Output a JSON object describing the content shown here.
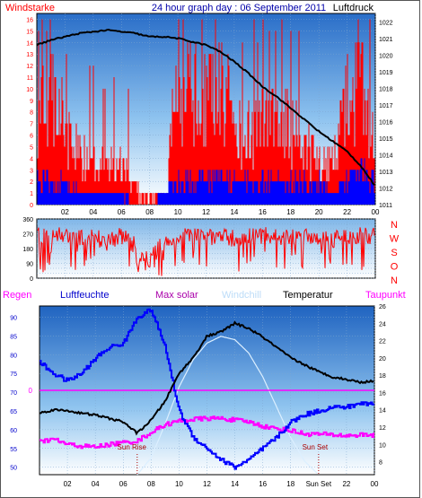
{
  "chart_data": [
    {
      "type": "line",
      "panel": "wind_pressure",
      "title": "24 hour graph day : 06 September 2011",
      "left_label": "Windstarke",
      "right_label": "Luftdruck",
      "x_ticks": [
        "02",
        "04",
        "06",
        "08",
        "10",
        "12",
        "14",
        "16",
        "18",
        "20",
        "22",
        "00"
      ],
      "y_left_ticks": [
        "0",
        "1",
        "2",
        "3",
        "4",
        "5",
        "6",
        "7",
        "8",
        "9",
        "10",
        "11",
        "12",
        "13",
        "14",
        "15",
        "16"
      ],
      "y_right_ticks": [
        "1011",
        "1012",
        "1013",
        "1014",
        "1015",
        "1016",
        "1017",
        "1018",
        "1019",
        "1020",
        "1021",
        "1022"
      ],
      "ylim_left": [
        0,
        16.5
      ],
      "ylim_right": [
        1011,
        1022.5
      ],
      "grid": true,
      "series": [
        {
          "name": "Luftdruck",
          "color": "#000000",
          "x": [
            0,
            1,
            2,
            3,
            4,
            5,
            6,
            7,
            8,
            9,
            10,
            11,
            12,
            13,
            14,
            15,
            16,
            17,
            18,
            19,
            20,
            21,
            22,
            23,
            24
          ],
          "y": [
            1020.6,
            1020.9,
            1021.1,
            1021.3,
            1021.4,
            1021.5,
            1021.4,
            1021.3,
            1021.1,
            1021.1,
            1021.0,
            1020.8,
            1020.6,
            1020.2,
            1019.6,
            1018.9,
            1018.1,
            1017.5,
            1016.8,
            1016.1,
            1015.4,
            1014.8,
            1014.2,
            1013.3,
            1012.1
          ]
        },
        {
          "name": "Windstarke (max)",
          "color": "#ff0000",
          "x": [
            0,
            1,
            2,
            3,
            4,
            5,
            6,
            7,
            8,
            9,
            10,
            11,
            12,
            13,
            14,
            15,
            16,
            17,
            18,
            19,
            20,
            21,
            22,
            23,
            24
          ],
          "y": [
            10,
            15,
            9,
            6,
            5,
            4,
            5,
            2,
            1,
            4,
            13,
            13,
            12,
            14,
            10,
            8,
            10,
            9,
            9,
            7,
            5,
            5,
            12,
            14,
            7
          ]
        },
        {
          "name": "Windstarke (avg)",
          "color": "#0000ff",
          "x": [
            0,
            1,
            2,
            3,
            4,
            5,
            6,
            7,
            8,
            9,
            10,
            11,
            12,
            13,
            14,
            15,
            16,
            17,
            18,
            19,
            20,
            21,
            22,
            23,
            24
          ],
          "y": [
            2,
            2,
            2,
            1,
            1,
            1,
            1,
            0,
            0,
            1,
            2,
            2,
            2,
            2,
            2,
            2,
            2,
            2,
            2,
            2,
            2,
            1,
            2,
            3,
            2
          ]
        }
      ]
    },
    {
      "type": "line",
      "panel": "wind_direction",
      "y_ticks": [
        "0",
        "30",
        "60",
        "90",
        "120",
        "150",
        "180",
        "210",
        "240",
        "270",
        "300",
        "330",
        "360"
      ],
      "ylim": [
        0,
        360
      ],
      "right_letters": [
        "N",
        "W",
        "S",
        "O",
        "N"
      ],
      "series": [
        {
          "name": "Windrichtung",
          "color": "#ff0000",
          "x": [
            0,
            1,
            2,
            3,
            4,
            5,
            6,
            7,
            8,
            9,
            10,
            11,
            12,
            13,
            14,
            15,
            16,
            17,
            18,
            19,
            20,
            21,
            22,
            23,
            24
          ],
          "y": [
            250,
            270,
            260,
            240,
            250,
            230,
            260,
            200,
            90,
            230,
            240,
            260,
            260,
            250,
            240,
            250,
            260,
            250,
            240,
            260,
            250,
            240,
            250,
            260,
            250
          ]
        }
      ]
    },
    {
      "type": "line",
      "panel": "humidity_temperature",
      "legend": [
        "Regen",
        "Luftfeuchte",
        "Max solar",
        "Windchill",
        "Temperatur",
        "Taupunkt"
      ],
      "x_ticks": [
        "02",
        "04",
        "06",
        "08",
        "10",
        "12",
        "14",
        "16",
        "18",
        "Sun Set",
        "22",
        "00"
      ],
      "y_left_ticks": [
        "50",
        "55",
        "60",
        "65",
        "70",
        "75",
        "80",
        "85",
        "90"
      ],
      "y_right_ticks": [
        "8",
        "10",
        "12",
        "14",
        "16",
        "18",
        "20",
        "22",
        "24",
        "26"
      ],
      "ylim_left": [
        48,
        93
      ],
      "ylim_right": [
        6.5,
        26
      ],
      "rain_value_label": "0",
      "sunrise_label": "Sun Rise",
      "sunset_label": "Sun Set",
      "sunrise_hour": 7.0,
      "sunset_hour": 20.0,
      "series": [
        {
          "name": "Luftfeuchte",
          "color": "#0000ff",
          "x": [
            0,
            1,
            2,
            3,
            4,
            5,
            6,
            7,
            8,
            9,
            10,
            11,
            12,
            13,
            14,
            15,
            16,
            17,
            18,
            19,
            20,
            21,
            22,
            23,
            24
          ],
          "y": [
            78,
            75,
            73,
            75,
            79,
            82,
            83,
            90,
            92,
            82,
            65,
            58,
            55,
            52,
            50,
            52,
            55,
            58,
            62,
            64,
            65,
            66,
            66,
            67,
            67
          ]
        },
        {
          "name": "Temperatur",
          "color": "#000000",
          "x": [
            0,
            1,
            2,
            3,
            4,
            5,
            6,
            7,
            8,
            9,
            10,
            11,
            12,
            13,
            14,
            15,
            16,
            17,
            18,
            19,
            20,
            21,
            22,
            23,
            24
          ],
          "y": [
            13.6,
            14.0,
            13.9,
            13.6,
            13.4,
            13.0,
            12.6,
            11.3,
            12.8,
            15.0,
            18.2,
            20.0,
            22.5,
            23.0,
            24.0,
            23.4,
            22.4,
            21.2,
            20.0,
            19.2,
            18.4,
            17.8,
            17.5,
            17.2,
            17.3
          ]
        },
        {
          "name": "Taupunkt",
          "color": "#ff00ff",
          "x": [
            0,
            1,
            2,
            3,
            4,
            5,
            6,
            7,
            8,
            9,
            10,
            11,
            12,
            13,
            14,
            15,
            16,
            17,
            18,
            19,
            20,
            21,
            22,
            23,
            24
          ],
          "y": [
            10.3,
            10.6,
            10.0,
            9.8,
            9.7,
            10.0,
            10.2,
            10.4,
            11.4,
            12.3,
            12.7,
            12.9,
            13.0,
            13.0,
            12.8,
            12.6,
            12.1,
            11.8,
            11.6,
            11.2,
            11.2,
            11.1,
            11.0,
            11.1,
            11.1
          ]
        },
        {
          "name": "Max solar",
          "color": "#bfe0ff",
          "x": [
            7,
            8,
            9,
            10,
            11,
            12,
            13,
            14,
            15,
            16,
            17,
            18,
            19,
            20
          ],
          "y": [
            0,
            10,
            30,
            52,
            68,
            78,
            82,
            80,
            72,
            58,
            40,
            22,
            8,
            0
          ]
        },
        {
          "name": "Regen",
          "color": "#ff00ff",
          "x": [
            0,
            24
          ],
          "y": [
            70.5,
            70.5
          ]
        }
      ]
    }
  ]
}
